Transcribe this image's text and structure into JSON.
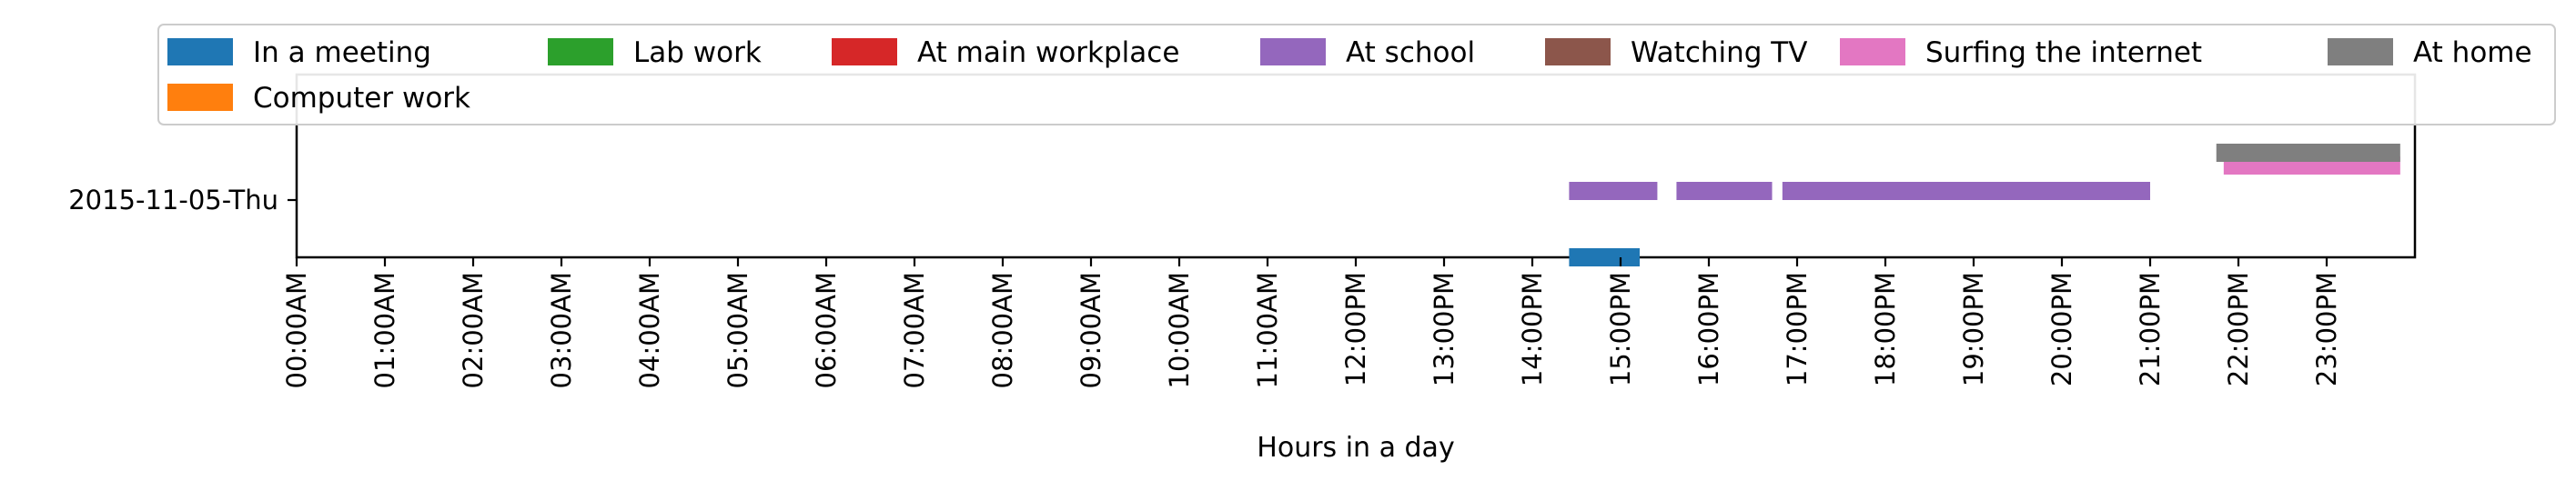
{
  "chart_data": {
    "type": "timeline",
    "xlabel": "Hours in a day",
    "xlim": [
      0,
      24
    ],
    "x_ticks": [
      "00:00AM",
      "01:00AM",
      "02:00AM",
      "03:00AM",
      "04:00AM",
      "05:00AM",
      "06:00AM",
      "07:00AM",
      "08:00AM",
      "09:00AM",
      "10:00AM",
      "11:00AM",
      "12:00PM",
      "13:00PM",
      "14:00PM",
      "15:00PM",
      "16:00PM",
      "17:00PM",
      "18:00PM",
      "19:00PM",
      "20:00PM",
      "21:00PM",
      "22:00PM",
      "23:00PM"
    ],
    "rows": [
      "2015-11-05-Thu"
    ],
    "legend_position": "top",
    "grid": false,
    "series": [
      {
        "name": "In a meeting",
        "color": "#1f77b4",
        "intervals": [
          [
            "14:25",
            "15:13"
          ]
        ]
      },
      {
        "name": "Computer work",
        "color": "#ff7f0e",
        "intervals": []
      },
      {
        "name": "Lab work",
        "color": "#2ca02c",
        "intervals": []
      },
      {
        "name": "At main workplace",
        "color": "#d62728",
        "intervals": []
      },
      {
        "name": "At school",
        "color": "#9467bd",
        "intervals": [
          [
            "14:25",
            "15:25"
          ],
          [
            "15:38",
            "16:43"
          ],
          [
            "16:50",
            "21:00"
          ]
        ]
      },
      {
        "name": "Watching TV",
        "color": "#8c564b",
        "intervals": []
      },
      {
        "name": "Surfing the internet",
        "color": "#e377c2",
        "intervals": [
          [
            "21:50",
            "23:50"
          ]
        ]
      },
      {
        "name": "At home",
        "color": "#7f7f7f",
        "intervals": [
          [
            "21:45",
            "23:50"
          ]
        ]
      }
    ]
  }
}
